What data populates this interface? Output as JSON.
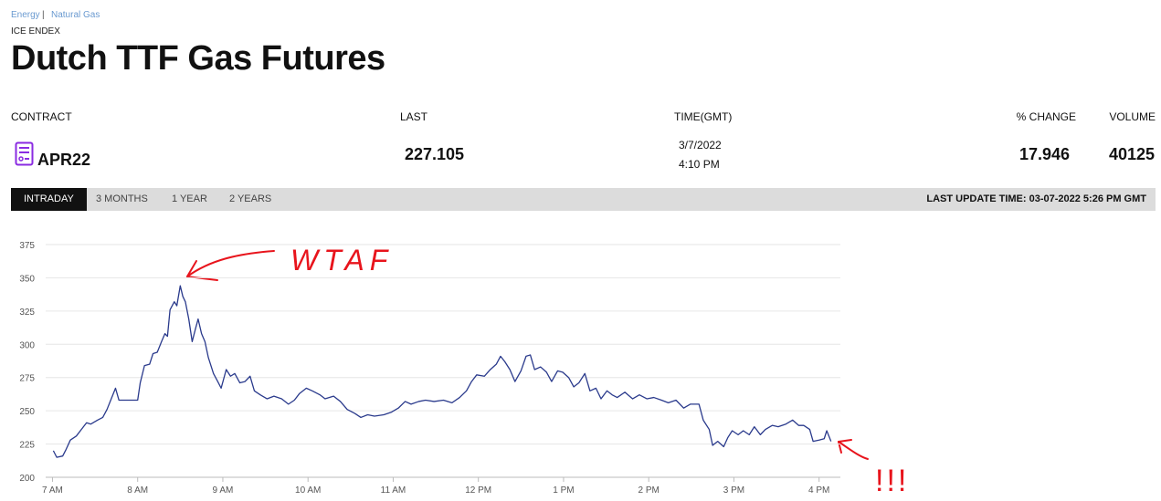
{
  "header": {
    "breadcrumbs": [
      "Energy",
      "Natural Gas"
    ],
    "separator": "|",
    "exchange": "ICE ENDEX",
    "title": "Dutch TTF Gas Futures"
  },
  "quote": {
    "columns": [
      "CONTRACT",
      "LAST",
      "TIME(GMT)",
      "% CHANGE",
      "VOLUME"
    ],
    "contract": "APR22",
    "last": 227.105,
    "date": "3/7/2022",
    "time": "4:10 PM",
    "change": 17.946,
    "volume": 40125
  },
  "tabs": [
    "INTRADAY",
    "3 MONTHS",
    "1 YEAR",
    "2 YEARS"
  ],
  "last_update": "LAST UPDATE TIME: 03-07-2022 5:26 PM GMT",
  "chart_data": {
    "type": "line",
    "color": "#2a3a8c",
    "grid": true,
    "annotations": [
      "WTAF",
      "!!!"
    ],
    "x": [
      7.01,
      7.05,
      7.12,
      7.16,
      7.21,
      7.28,
      7.34,
      7.4,
      7.45,
      7.53,
      7.59,
      7.64,
      7.69,
      7.74,
      7.78,
      7.89,
      8.0,
      8.03,
      8.08,
      8.14,
      8.18,
      8.23,
      8.28,
      8.32,
      8.35,
      8.38,
      8.43,
      8.46,
      8.5,
      8.53,
      8.56,
      8.6,
      8.64,
      8.68,
      8.71,
      8.75,
      8.79,
      8.83,
      8.89,
      8.94,
      8.98,
      9.04,
      9.09,
      9.14,
      9.2,
      9.26,
      9.32,
      9.37,
      9.44,
      9.52,
      9.6,
      9.69,
      9.77,
      9.84,
      9.9,
      9.98,
      10.05,
      10.14,
      10.2,
      10.3,
      10.38,
      10.46,
      10.55,
      10.62,
      10.7,
      10.78,
      10.89,
      10.98,
      11.06,
      11.14,
      11.21,
      11.3,
      11.38,
      11.48,
      11.59,
      11.69,
      11.78,
      11.86,
      11.92,
      11.98,
      12.07,
      12.14,
      12.21,
      12.26,
      12.31,
      12.37,
      12.43,
      12.5,
      12.56,
      12.61,
      12.66,
      12.73,
      12.8,
      12.86,
      12.93,
      12.99,
      13.06,
      13.12,
      13.18,
      13.25,
      13.31,
      13.38,
      13.44,
      13.51,
      13.57,
      13.63,
      13.72,
      13.81,
      13.89,
      13.98,
      14.06,
      14.15,
      14.23,
      14.32,
      14.41,
      14.49,
      14.59,
      14.64,
      14.71,
      14.75,
      14.81,
      14.88,
      14.93,
      14.98,
      15.05,
      15.11,
      15.18,
      15.24,
      15.31,
      15.37,
      15.45,
      15.52,
      15.61,
      15.69,
      15.76,
      15.82,
      15.89,
      15.93,
      16.0,
      16.06,
      16.09,
      16.14
    ],
    "values": [
      220,
      215,
      216,
      221,
      228,
      231,
      236,
      241,
      240,
      243,
      245,
      251,
      259,
      267,
      258,
      258,
      258,
      271,
      284,
      285,
      293,
      294,
      302,
      308,
      306,
      326,
      332,
      329,
      344,
      336,
      332,
      319,
      302,
      312,
      319,
      308,
      302,
      290,
      278,
      272,
      267,
      281,
      276,
      278,
      271,
      272,
      276,
      265,
      262,
      259,
      261,
      259,
      255,
      258,
      263,
      267,
      265,
      262,
      259,
      261,
      257,
      251,
      248,
      245,
      247,
      246,
      247,
      249,
      252,
      257,
      255,
      257,
      258,
      257,
      258,
      256,
      260,
      265,
      272,
      277,
      276,
      281,
      285,
      291,
      287,
      281,
      272,
      280,
      291,
      292,
      281,
      283,
      279,
      272,
      280,
      279,
      275,
      268,
      271,
      278,
      265,
      267,
      259,
      265,
      262,
      260,
      264,
      259,
      262,
      259,
      260,
      258,
      256,
      258,
      252,
      255,
      255,
      243,
      236,
      224,
      227,
      223,
      230,
      235,
      232,
      235,
      232,
      238,
      232,
      236,
      239,
      238,
      240,
      243,
      239,
      239,
      236,
      227,
      228,
      229,
      235,
      227
    ],
    "xlim": [
      6.92,
      16.25
    ],
    "ylim": [
      200,
      375
    ],
    "yticks": [
      200,
      225,
      250,
      275,
      300,
      325,
      350,
      375
    ],
    "xticks": [
      {
        "value": 7,
        "label": "7 AM"
      },
      {
        "value": 8,
        "label": "8 AM"
      },
      {
        "value": 9,
        "label": "9 AM"
      },
      {
        "value": 10,
        "label": "10 AM"
      },
      {
        "value": 11,
        "label": "11 AM"
      },
      {
        "value": 12,
        "label": "12 PM"
      },
      {
        "value": 13,
        "label": "1 PM"
      },
      {
        "value": 14,
        "label": "2 PM"
      },
      {
        "value": 15,
        "label": "3 PM"
      },
      {
        "value": 16,
        "label": "4 PM"
      }
    ]
  }
}
